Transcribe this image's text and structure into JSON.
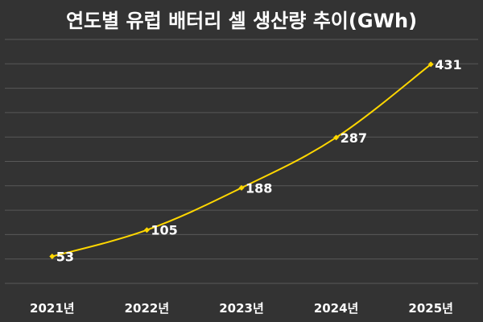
{
  "chart_data": {
    "type": "line",
    "title": "연도별 유럽 배터리 셀 생산량 추이(GWh)",
    "categories": [
      "2021년",
      "2022년",
      "2023년",
      "2024년",
      "2025년"
    ],
    "series": [
      {
        "values": [
          53,
          105,
          188,
          287,
          431
        ]
      }
    ],
    "ylim": [
      0,
      480
    ],
    "grid": true,
    "legend": "none",
    "colors": {
      "background": "#333333",
      "line": "#ffd700",
      "gridline": "#595959",
      "text": "#ffffff"
    }
  }
}
